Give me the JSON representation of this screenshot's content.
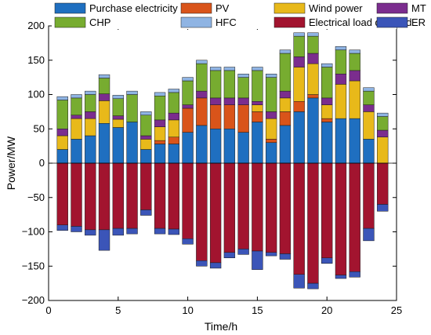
{
  "chart_data": {
    "type": "bar",
    "stacked": true,
    "title": "",
    "xlabel": "Time/h",
    "ylabel": "Power/MW",
    "xlim": [
      0,
      25
    ],
    "ylim": [
      -200,
      200
    ],
    "xticks": [
      0,
      5,
      10,
      15,
      20,
      25
    ],
    "yticks": [
      -200,
      -150,
      -100,
      -50,
      0,
      50,
      100,
      150,
      200
    ],
    "grid": false,
    "legend_position": "top",
    "legend_order": [
      "Purchase electricity",
      "PV",
      "Wind power",
      "MT",
      "CHP",
      "HFC",
      "Electrical load demand",
      "ER"
    ],
    "x": [
      1,
      2,
      3,
      4,
      5,
      6,
      7,
      8,
      9,
      10,
      11,
      12,
      13,
      14,
      15,
      16,
      17,
      18,
      19,
      20,
      21,
      22,
      23,
      24
    ],
    "series": [
      {
        "name": "Purchase electricity",
        "color": "#1f6fc0",
        "values": [
          20,
          35,
          40,
          58,
          52,
          60,
          20,
          28,
          28,
          45,
          55,
          50,
          50,
          45,
          60,
          30,
          55,
          75,
          95,
          60,
          65,
          65,
          35,
          0
        ]
      },
      {
        "name": "PV",
        "color": "#d9541a",
        "values": [
          0,
          0,
          0,
          0,
          0,
          0,
          0,
          5,
          10,
          35,
          40,
          35,
          35,
          40,
          15,
          5,
          20,
          15,
          5,
          5,
          0,
          0,
          0,
          0
        ]
      },
      {
        "name": "Wind power",
        "color": "#e8b91a",
        "values": [
          20,
          30,
          25,
          33,
          12,
          0,
          15,
          20,
          25,
          0,
          0,
          0,
          0,
          0,
          10,
          30,
          20,
          50,
          45,
          20,
          50,
          55,
          40,
          38
        ]
      },
      {
        "name": "MT",
        "color": "#7b2d8e",
        "values": [
          10,
          5,
          10,
          10,
          5,
          0,
          5,
          10,
          10,
          5,
          10,
          10,
          10,
          10,
          5,
          10,
          10,
          15,
          15,
          10,
          15,
          15,
          10,
          10
        ]
      },
      {
        "name": "CHP",
        "color": "#77ac30",
        "values": [
          42,
          25,
          25,
          23,
          25,
          40,
          30,
          35,
          30,
          35,
          40,
          40,
          40,
          30,
          45,
          50,
          55,
          30,
          25,
          45,
          35,
          25,
          20,
          20
        ]
      },
      {
        "name": "HFC",
        "color": "#8fb4e3",
        "values": [
          5,
          5,
          5,
          5,
          5,
          5,
          5,
          5,
          5,
          5,
          5,
          5,
          5,
          5,
          5,
          5,
          5,
          5,
          5,
          5,
          5,
          5,
          5,
          5
        ]
      },
      {
        "name": "Electrical load demand",
        "color": "#a2142f",
        "values": [
          -90,
          -92,
          -97,
          -97,
          -95,
          -95,
          -68,
          -95,
          -96,
          -110,
          -142,
          -145,
          -130,
          -125,
          -128,
          -130,
          -132,
          -162,
          -175,
          -138,
          -163,
          -158,
          -95,
          -60
        ]
      },
      {
        "name": "ER",
        "color": "#3b55b8",
        "values": [
          -8,
          -8,
          -8,
          -30,
          -10,
          -8,
          -8,
          -8,
          -8,
          -8,
          -8,
          -8,
          -8,
          -8,
          -27,
          -5,
          -8,
          -20,
          -8,
          -8,
          -5,
          -8,
          -18,
          -10
        ]
      }
    ]
  }
}
